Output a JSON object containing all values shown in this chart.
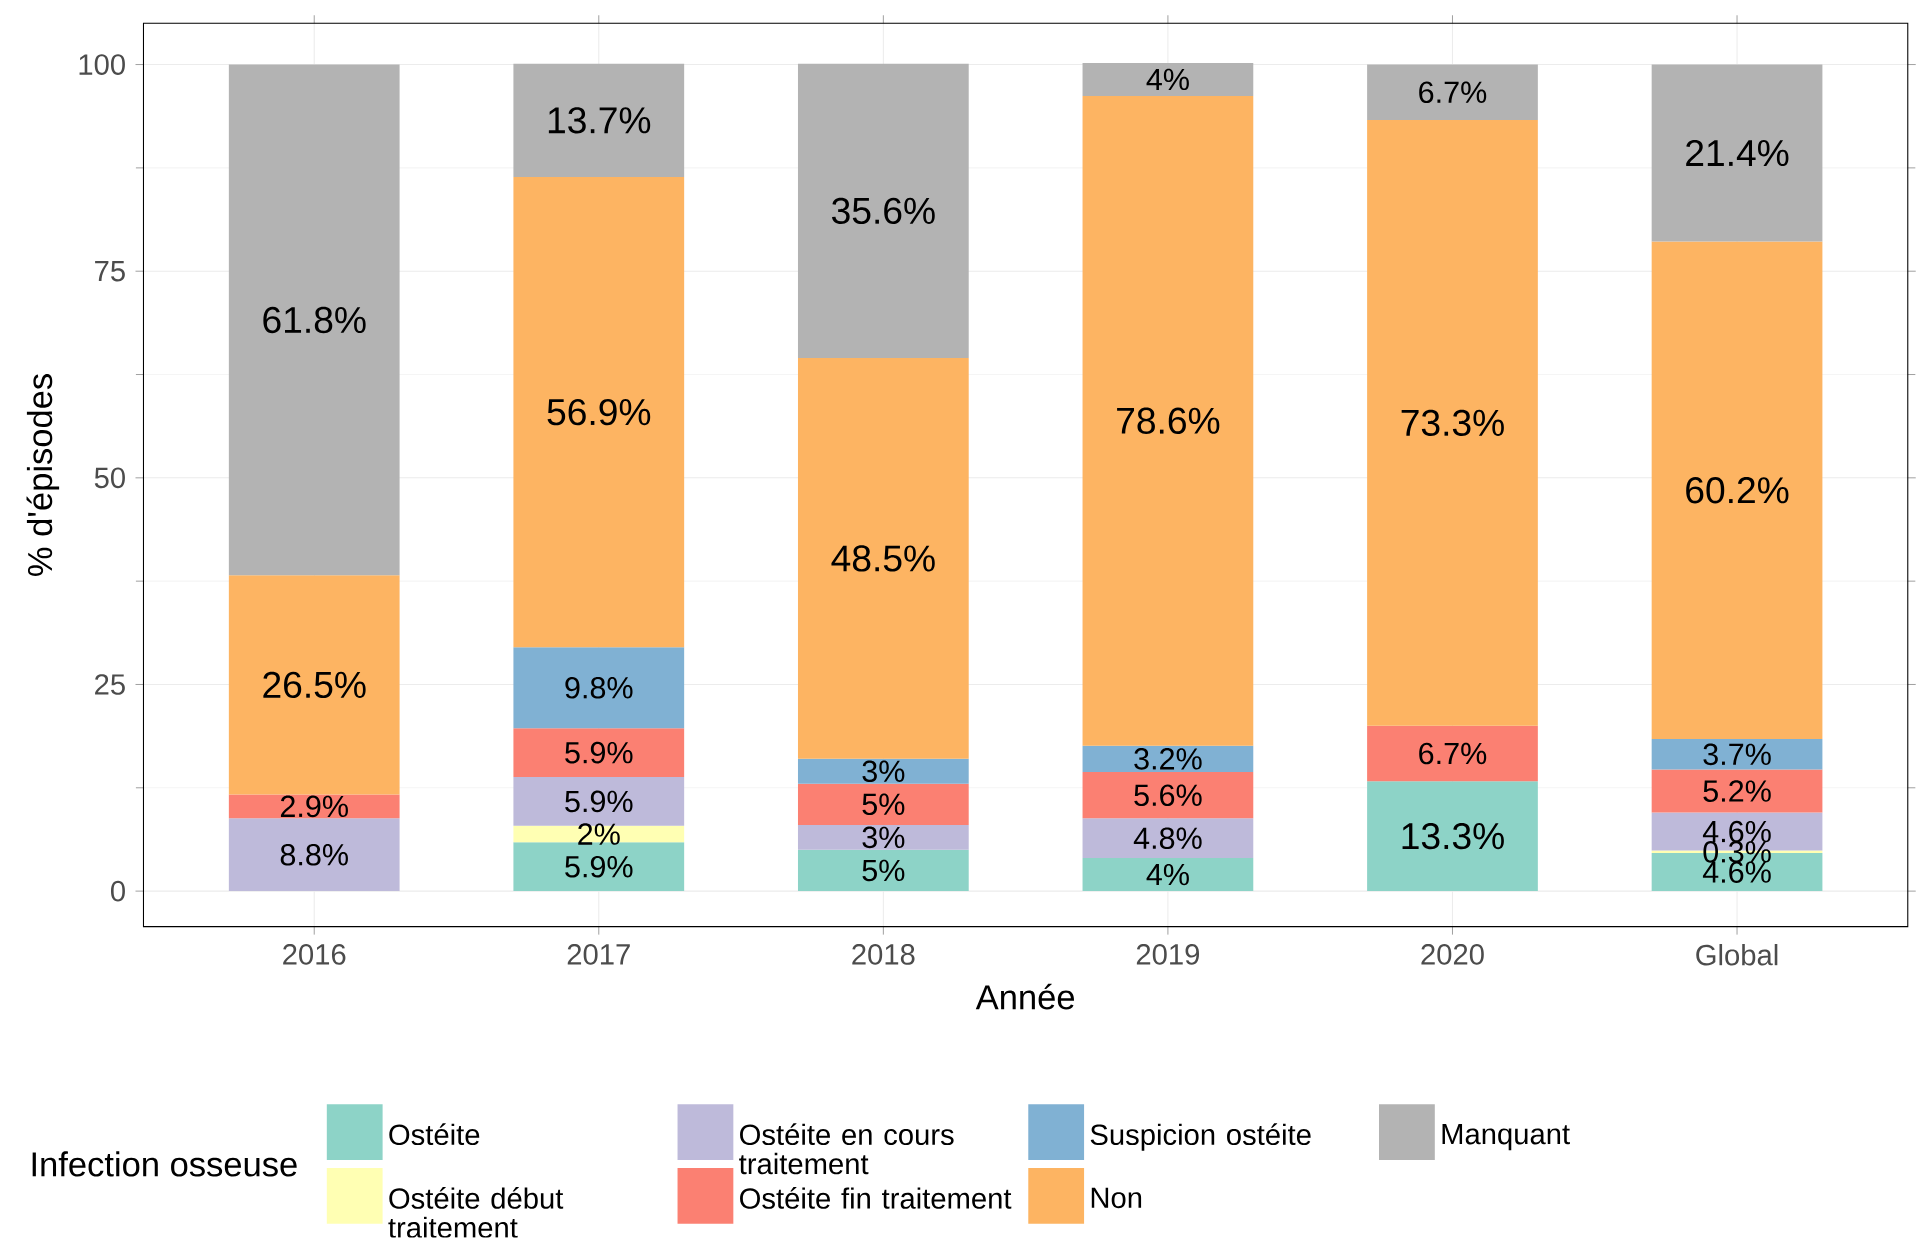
{
  "chart_data": {
    "type": "bar",
    "stacked": true,
    "xlabel": "Année",
    "ylabel": "% d'épisodes",
    "legend_title": "Infection osseuse",
    "categories": [
      "2016",
      "2017",
      "2018",
      "2019",
      "2020",
      "Global"
    ],
    "ylim": [
      -4.3,
      105
    ],
    "yticks": [
      0,
      25,
      50,
      75,
      100
    ],
    "grid": true,
    "legend": "bottom",
    "series": [
      {
        "name": "Ostéite",
        "color": "#8dd3c7",
        "values": [
          null,
          5.9,
          5,
          4,
          13.3,
          4.6
        ],
        "value_labels": [
          null,
          "5.9%",
          "5%",
          "4%",
          "13.3%",
          "4.6%"
        ]
      },
      {
        "name": "Ostéite début traitement",
        "color": "#ffffb3",
        "values": [
          null,
          2,
          null,
          null,
          null,
          0.3
        ],
        "value_labels": [
          null,
          "2%",
          null,
          null,
          null,
          "0.3%"
        ]
      },
      {
        "name": "Ostéite en cours traitement",
        "color": "#bebada",
        "values": [
          8.8,
          5.9,
          3,
          4.8,
          null,
          4.6
        ],
        "value_labels": [
          "8.8%",
          "5.9%",
          "3%",
          "4.8%",
          null,
          "4.6%"
        ]
      },
      {
        "name": "Ostéite fin traitement",
        "color": "#fb8072",
        "values": [
          2.9,
          5.9,
          5,
          5.6,
          6.7,
          5.2
        ],
        "value_labels": [
          "2.9%",
          "5.9%",
          "5%",
          "5.6%",
          "6.7%",
          "5.2%"
        ]
      },
      {
        "name": "Suspicion ostéite",
        "color": "#80b1d3",
        "values": [
          null,
          9.8,
          3,
          3.2,
          null,
          3.7
        ],
        "value_labels": [
          null,
          "9.8%",
          "3%",
          "3.2%",
          null,
          "3.7%"
        ]
      },
      {
        "name": "Non",
        "color": "#fdb462",
        "values": [
          26.5,
          56.9,
          48.5,
          78.6,
          73.3,
          60.2
        ],
        "value_labels": [
          "26.5%",
          "56.9%",
          "48.5%",
          "78.6%",
          "73.3%",
          "60.2%"
        ]
      },
      {
        "name": "Manquant",
        "color": "#b3b3b3",
        "values": [
          61.8,
          13.7,
          35.6,
          4,
          6.7,
          21.4
        ],
        "value_labels": [
          "61.8%",
          "13.7%",
          "35.6%",
          "4%",
          "6.7%",
          "21.4%"
        ]
      }
    ]
  }
}
